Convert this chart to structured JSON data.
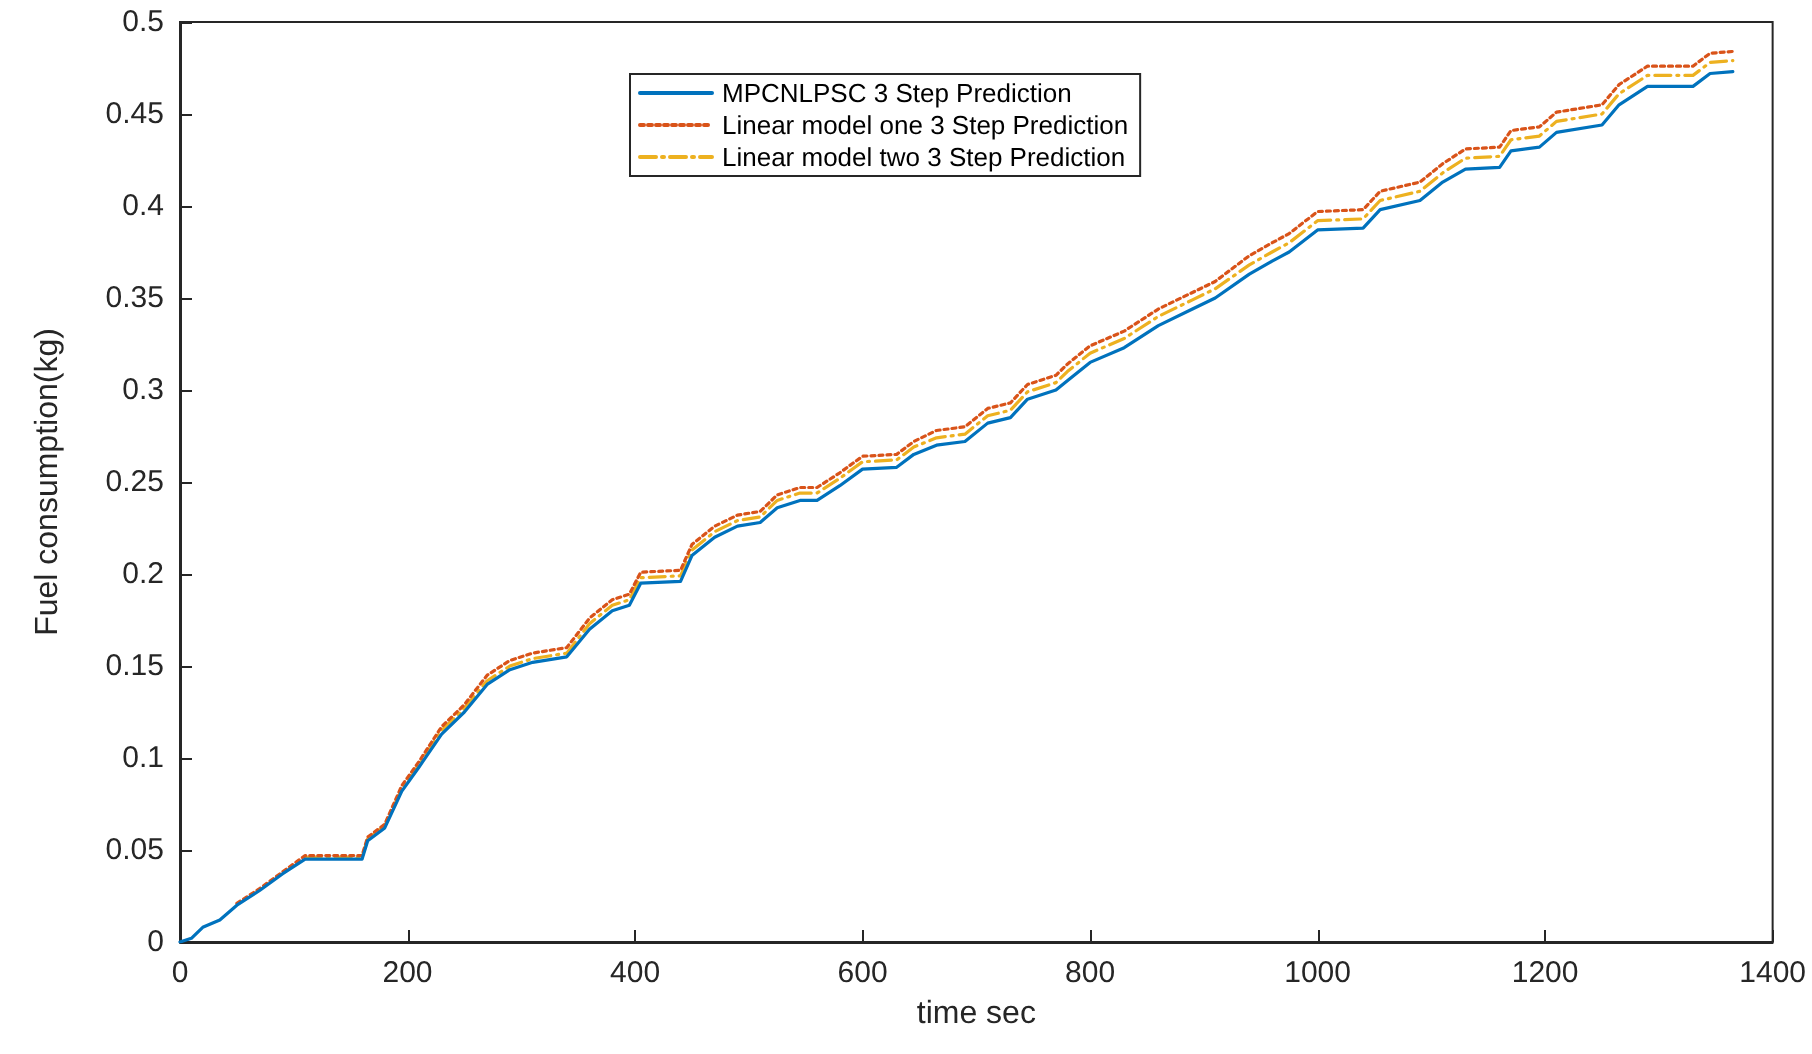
{
  "chart_data": {
    "type": "line",
    "xlabel": "time sec",
    "ylabel": "Fuel consumption(kg)",
    "x": [
      0,
      10,
      20,
      35,
      50,
      70,
      90,
      110,
      160,
      165,
      180,
      195,
      210,
      230,
      250,
      270,
      290,
      310,
      340,
      360,
      380,
      395,
      405,
      440,
      450,
      470,
      490,
      510,
      525,
      545,
      560,
      580,
      600,
      630,
      645,
      665,
      690,
      710,
      730,
      745,
      770,
      780,
      800,
      830,
      860,
      890,
      910,
      940,
      960,
      975,
      1000,
      1040,
      1055,
      1090,
      1110,
      1130,
      1160,
      1170,
      1195,
      1210,
      1250,
      1265,
      1290,
      1330,
      1345,
      1365
    ],
    "series": [
      {
        "name": "MPCNLPSC 3 Step Prediction",
        "color": "#0072bd",
        "line_style": "solid",
        "values": [
          0,
          0.002,
          0.008,
          0.012,
          0.02,
          0.028,
          0.037,
          0.045,
          0.045,
          0.055,
          0.062,
          0.082,
          0.095,
          0.113,
          0.125,
          0.14,
          0.148,
          0.152,
          0.155,
          0.17,
          0.18,
          0.183,
          0.195,
          0.196,
          0.21,
          0.22,
          0.226,
          0.228,
          0.236,
          0.24,
          0.24,
          0.248,
          0.257,
          0.258,
          0.265,
          0.27,
          0.272,
          0.282,
          0.285,
          0.295,
          0.3,
          0.305,
          0.315,
          0.323,
          0.335,
          0.344,
          0.35,
          0.363,
          0.37,
          0.375,
          0.387,
          0.388,
          0.398,
          0.403,
          0.413,
          0.42,
          0.421,
          0.43,
          0.432,
          0.44,
          0.444,
          0.455,
          0.465,
          0.465,
          0.472,
          0.473
        ]
      },
      {
        "name": "Linear model one 3 Step Prediction",
        "color": "#d95319",
        "line_style": "dotted",
        "values": [
          null,
          null,
          null,
          null,
          0.021,
          0.029,
          0.038,
          0.047,
          0.047,
          0.057,
          0.064,
          0.085,
          0.098,
          0.117,
          0.129,
          0.145,
          0.153,
          0.157,
          0.16,
          0.176,
          0.186,
          0.189,
          0.201,
          0.202,
          0.216,
          0.226,
          0.232,
          0.234,
          0.243,
          0.247,
          0.247,
          0.255,
          0.264,
          0.265,
          0.272,
          0.278,
          0.28,
          0.29,
          0.293,
          0.303,
          0.308,
          0.314,
          0.324,
          0.332,
          0.344,
          0.353,
          0.359,
          0.373,
          0.38,
          0.385,
          0.397,
          0.398,
          0.408,
          0.413,
          0.423,
          0.431,
          0.432,
          0.441,
          0.443,
          0.451,
          0.455,
          0.466,
          0.476,
          0.476,
          0.483,
          0.484
        ]
      },
      {
        "name": "Linear model two 3 Step Prediction",
        "color": "#edb120",
        "line_style": "dashed",
        "values": [
          null,
          null,
          null,
          null,
          null,
          null,
          null,
          0.046,
          0.046,
          0.056,
          0.063,
          0.083,
          0.096,
          0.115,
          0.127,
          0.142,
          0.15,
          0.154,
          0.157,
          0.173,
          0.183,
          0.186,
          0.198,
          0.199,
          0.213,
          0.223,
          0.229,
          0.231,
          0.24,
          0.244,
          0.244,
          0.252,
          0.261,
          0.262,
          0.269,
          0.274,
          0.276,
          0.286,
          0.289,
          0.299,
          0.304,
          0.31,
          0.32,
          0.328,
          0.34,
          0.349,
          0.355,
          0.368,
          0.375,
          0.38,
          0.392,
          0.393,
          0.403,
          0.408,
          0.418,
          0.426,
          0.427,
          0.436,
          0.438,
          0.446,
          0.45,
          0.461,
          0.471,
          0.471,
          0.478,
          0.479
        ]
      }
    ],
    "xlim": [
      0,
      1400
    ],
    "xticks": [
      0,
      200,
      400,
      600,
      800,
      1000,
      1200,
      1400
    ],
    "ylim": [
      0,
      0.5
    ],
    "yticks": [
      0,
      0.05,
      0.1,
      0.15,
      0.2,
      0.25,
      0.3,
      0.35,
      0.4,
      0.45,
      0.5
    ],
    "grid": false,
    "legend": "top",
    "marker": "none"
  }
}
